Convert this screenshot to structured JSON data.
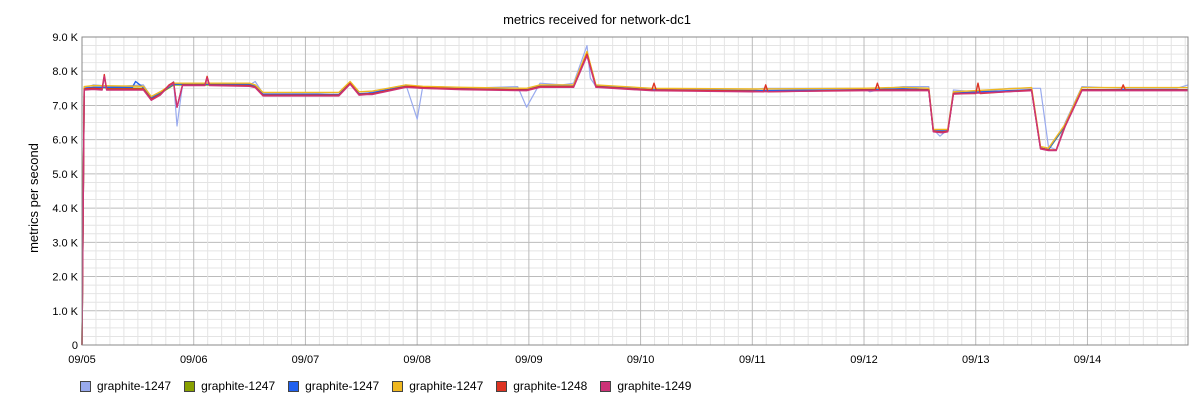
{
  "chart_data": {
    "type": "line",
    "title": "metrics received for network-dc1",
    "ylabel": "metrics per second",
    "xlabel": "",
    "ylim": [
      0,
      9000
    ],
    "xlim": [
      0,
      9.9
    ],
    "y_ticks": [
      0,
      1000,
      2000,
      3000,
      4000,
      5000,
      6000,
      7000,
      8000,
      9000
    ],
    "y_tick_labels": [
      "0",
      "1.0 K",
      "2.0 K",
      "3.0 K",
      "4.0 K",
      "5.0 K",
      "6.0 K",
      "7.0 K",
      "8.0 K",
      "9.0 K"
    ],
    "x_tick_labels": [
      "09/05",
      "09/06",
      "09/07",
      "09/08",
      "09/09",
      "09/10",
      "09/11",
      "09/12",
      "09/13",
      "09/14"
    ],
    "x_tick_values": [
      0,
      1,
      2,
      3,
      4,
      5,
      6,
      7,
      8,
      9
    ],
    "grid": true,
    "legend_position": "bottom",
    "x_unit": "days since 09/05",
    "series": [
      {
        "name": "graphite-1247",
        "color": "#99aaee",
        "x": [
          0,
          0.02,
          0.1,
          0.3,
          0.55,
          0.62,
          0.7,
          0.82,
          0.85,
          0.9,
          0.95,
          1.1,
          1.3,
          1.5,
          1.55,
          1.62,
          1.7,
          2.1,
          2.3,
          2.4,
          2.48,
          2.55,
          2.6,
          2.9,
          3.0,
          3.05,
          3.2,
          3.4,
          3.9,
          3.98,
          4.1,
          4.3,
          4.4,
          4.52,
          4.55,
          4.6,
          4.8,
          5.1,
          5.6,
          6.0,
          6.1,
          6.6,
          7.0,
          7.05,
          7.2,
          7.35,
          7.58,
          7.62,
          7.68,
          7.75,
          7.8,
          8.0,
          8.3,
          8.5,
          8.58,
          8.65,
          8.72,
          8.8,
          8.95,
          9.3,
          9.8,
          9.9
        ],
        "y": [
          0,
          7500,
          7600,
          7550,
          7600,
          7250,
          7300,
          7700,
          6400,
          7600,
          7650,
          7600,
          7650,
          7600,
          7700,
          7350,
          7350,
          7350,
          7300,
          7700,
          7350,
          7350,
          7400,
          7600,
          6600,
          7550,
          7550,
          7500,
          7550,
          6950,
          7650,
          7600,
          7650,
          8750,
          7800,
          7550,
          7500,
          7500,
          7450,
          7450,
          7500,
          7500,
          7500,
          7400,
          7500,
          7550,
          7550,
          6300,
          6100,
          6300,
          7450,
          7400,
          7500,
          7500,
          7500,
          5800,
          5700,
          6500,
          7550,
          7500,
          7500,
          7600
        ]
      },
      {
        "name": "graphite-1247",
        "color": "#88a000",
        "x": [
          0,
          0.02,
          0.1,
          0.55,
          0.62,
          0.7,
          0.82,
          0.9,
          1.5,
          1.55,
          1.62,
          2.3,
          2.4,
          2.48,
          2.6,
          2.9,
          3.05,
          3.4,
          3.98,
          4.1,
          4.4,
          4.52,
          4.6,
          5.1,
          6.0,
          7.0,
          7.35,
          7.58,
          7.62,
          7.75,
          7.8,
          8.5,
          8.58,
          8.65,
          8.8,
          8.95,
          9.9
        ],
        "y": [
          0,
          7480,
          7520,
          7500,
          7200,
          7350,
          7600,
          7600,
          7600,
          7550,
          7300,
          7300,
          7650,
          7320,
          7350,
          7550,
          7500,
          7480,
          7450,
          7550,
          7550,
          8500,
          7550,
          7450,
          7420,
          7450,
          7480,
          7450,
          6250,
          6250,
          7350,
          7450,
          5750,
          5700,
          6400,
          7450,
          7450
        ]
      },
      {
        "name": "graphite-1247",
        "color": "#2060ee",
        "x": [
          0,
          0.02,
          0.1,
          0.45,
          0.48,
          0.55,
          0.62,
          0.7,
          0.82,
          0.9,
          1.5,
          1.55,
          1.62,
          2.3,
          2.4,
          2.48,
          2.6,
          2.9,
          3.05,
          3.4,
          3.98,
          4.1,
          4.4,
          4.52,
          4.6,
          5.1,
          6.0,
          7.0,
          7.35,
          7.58,
          7.62,
          7.75,
          7.8,
          8.5,
          8.58,
          8.65,
          8.8,
          8.95,
          9.9
        ],
        "y": [
          0,
          7500,
          7530,
          7530,
          7700,
          7520,
          7220,
          7380,
          7620,
          7620,
          7620,
          7560,
          7320,
          7320,
          7680,
          7340,
          7370,
          7570,
          7520,
          7490,
          7460,
          7570,
          7570,
          8550,
          7570,
          7460,
          7430,
          7460,
          7490,
          7460,
          6260,
          6260,
          7360,
          7460,
          5760,
          5710,
          6420,
          7460,
          7460
        ]
      },
      {
        "name": "graphite-1247",
        "color": "#f0b820",
        "x": [
          0,
          0.02,
          0.1,
          0.55,
          0.62,
          0.7,
          0.82,
          0.9,
          1.5,
          1.55,
          1.62,
          2.3,
          2.4,
          2.48,
          2.6,
          2.9,
          3.05,
          3.4,
          3.98,
          4.1,
          4.4,
          4.52,
          4.6,
          5.1,
          6.0,
          7.0,
          7.35,
          7.58,
          7.62,
          7.75,
          7.8,
          8.5,
          8.58,
          8.65,
          8.8,
          8.95,
          9.9
        ],
        "y": [
          0,
          7550,
          7580,
          7560,
          7260,
          7400,
          7650,
          7650,
          7650,
          7600,
          7380,
          7380,
          7700,
          7400,
          7420,
          7600,
          7560,
          7530,
          7500,
          7600,
          7600,
          8580,
          7600,
          7500,
          7480,
          7500,
          7530,
          7500,
          6300,
          6300,
          7400,
          7520,
          5800,
          5750,
          6450,
          7520,
          7520
        ]
      },
      {
        "name": "graphite-1248",
        "color": "#dd3322",
        "x": [
          0,
          0.02,
          0.1,
          0.18,
          0.2,
          0.22,
          0.55,
          0.62,
          0.7,
          0.78,
          0.82,
          0.85,
          0.9,
          1.1,
          1.12,
          1.14,
          1.5,
          1.55,
          1.62,
          2.1,
          2.3,
          2.4,
          2.48,
          2.55,
          2.6,
          2.9,
          2.95,
          3.05,
          3.4,
          3.98,
          4.1,
          4.4,
          4.52,
          4.6,
          5.1,
          5.12,
          5.14,
          6.0,
          6.1,
          6.12,
          6.14,
          7.0,
          7.1,
          7.12,
          7.14,
          7.35,
          7.58,
          7.62,
          7.7,
          7.75,
          7.8,
          8.0,
          8.02,
          8.04,
          8.5,
          8.58,
          8.65,
          8.72,
          8.8,
          8.95,
          9.3,
          9.32,
          9.34,
          9.9
        ],
        "y": [
          0,
          7480,
          7500,
          7480,
          7900,
          7480,
          7480,
          7180,
          7320,
          7600,
          7680,
          6950,
          7600,
          7600,
          7850,
          7600,
          7580,
          7540,
          7300,
          7300,
          7300,
          7650,
          7320,
          7340,
          7340,
          7550,
          7550,
          7520,
          7480,
          7450,
          7550,
          7550,
          8500,
          7550,
          7450,
          7650,
          7450,
          7420,
          7400,
          7600,
          7400,
          7450,
          7450,
          7650,
          7450,
          7450,
          7450,
          6250,
          6220,
          6250,
          7350,
          7350,
          7650,
          7350,
          7450,
          5750,
          5700,
          5700,
          6400,
          7450,
          7450,
          7600,
          7450,
          7450
        ]
      },
      {
        "name": "graphite-1249",
        "color": "#cc3377",
        "x": [
          0,
          0.02,
          0.1,
          0.18,
          0.2,
          0.22,
          0.55,
          0.62,
          0.7,
          0.78,
          0.82,
          0.85,
          0.9,
          1.1,
          1.12,
          1.14,
          1.5,
          1.55,
          1.62,
          2.1,
          2.3,
          2.4,
          2.48,
          2.55,
          2.6,
          2.9,
          3.05,
          3.4,
          3.98,
          4.1,
          4.4,
          4.52,
          4.6,
          5.1,
          6.0,
          7.0,
          7.35,
          7.58,
          7.62,
          7.7,
          7.75,
          7.8,
          8.5,
          8.58,
          8.65,
          8.72,
          8.8,
          8.95,
          9.9
        ],
        "y": [
          0,
          7450,
          7470,
          7450,
          7850,
          7450,
          7450,
          7150,
          7300,
          7580,
          7650,
          6950,
          7580,
          7580,
          7800,
          7580,
          7560,
          7520,
          7280,
          7280,
          7280,
          7620,
          7300,
          7320,
          7320,
          7530,
          7500,
          7460,
          7430,
          7530,
          7530,
          8450,
          7530,
          7430,
          7400,
          7430,
          7430,
          7430,
          6230,
          6200,
          6230,
          7330,
          7430,
          5730,
          5680,
          5680,
          6380,
          7430,
          7430
        ]
      }
    ]
  }
}
